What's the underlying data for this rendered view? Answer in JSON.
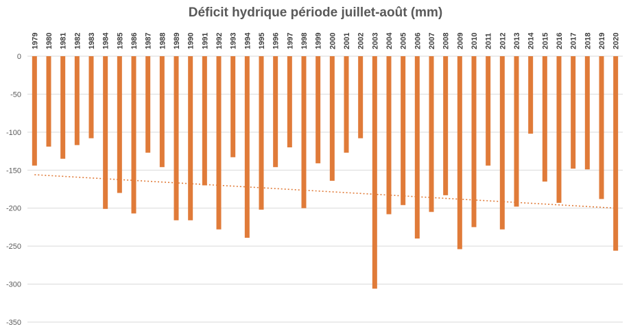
{
  "chart_data": {
    "type": "bar",
    "title": "Déficit hydrique période juillet-août (mm)",
    "xlabel": "",
    "ylabel": "",
    "ylim": [
      -350,
      0
    ],
    "y_ticks": [
      0,
      -50,
      -100,
      -150,
      -200,
      -250,
      -300,
      -350
    ],
    "grid": true,
    "bar_color": "#E07B39",
    "trendline": {
      "type": "linear",
      "style": "dotted",
      "color": "#E07B39",
      "start": -156,
      "end": -200
    },
    "categories": [
      "1979",
      "1980",
      "1981",
      "1982",
      "1983",
      "1984",
      "1985",
      "1986",
      "1987",
      "1988",
      "1989",
      "1990",
      "1991",
      "1992",
      "1993",
      "1994",
      "1995",
      "1996",
      "1997",
      "1998",
      "1999",
      "2000",
      "2001",
      "2002",
      "2003",
      "2004",
      "2005",
      "2006",
      "2007",
      "2008",
      "2009",
      "2010",
      "2011",
      "2012",
      "2013",
      "2014",
      "2015",
      "2016",
      "2017",
      "2018",
      "2019",
      "2020"
    ],
    "values": [
      -144,
      -119,
      -135,
      -117,
      -108,
      -201,
      -180,
      -207,
      -127,
      -146,
      -216,
      -216,
      -170,
      -228,
      -133,
      -239,
      -202,
      -146,
      -120,
      -200,
      -141,
      -164,
      -127,
      -108,
      -306,
      -208,
      -196,
      -240,
      -205,
      -183,
      -254,
      -225,
      -144,
      -228,
      -198,
      -102,
      -165,
      -193,
      -148,
      -149,
      -188,
      -256
    ]
  }
}
